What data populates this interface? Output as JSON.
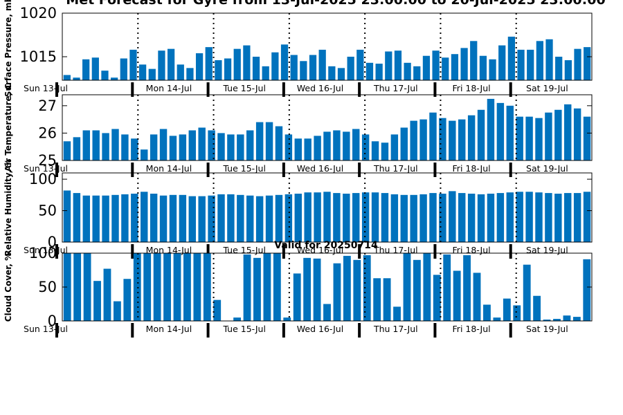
{
  "page": {
    "title": "Met Forecast for Gyre from 13-Jul-2025 23:00:00 to 20-Jul-2025 23:00:00",
    "subtitle": "Valid for 20250714"
  },
  "colors": {
    "bar": "#0072bd",
    "axis": "#000000"
  },
  "day_labels": [
    "Sun 13-Jul",
    "Mon 14-Jul",
    "Tue 15-Jul",
    "Wed 16-Jul",
    "Thu 17-Jul",
    "Fri 18-Jul",
    "Sat 19-Jul"
  ],
  "chart_data": [
    {
      "type": "bar",
      "ylabel": "Surface Pressure, mb",
      "yticks": [
        1015,
        1020
      ],
      "ylim": [
        1012.3,
        1020
      ],
      "values": [
        1012.9,
        1012.6,
        1014.7,
        1014.9,
        1013.4,
        1012.6,
        1014.8,
        1015.8,
        1014.1,
        1013.6,
        1015.7,
        1015.9,
        1014.1,
        1013.7,
        1015.4,
        1016.1,
        1014.6,
        1014.8,
        1015.9,
        1016.3,
        1015,
        1013.9,
        1015.5,
        1016.4,
        1015.2,
        1014.5,
        1015.2,
        1015.8,
        1013.9,
        1013.7,
        1015,
        1015.8,
        1014.3,
        1014.2,
        1015.6,
        1015.7,
        1014.3,
        1013.9,
        1015.1,
        1015.7,
        1014.9,
        1015.3,
        1016,
        1016.8,
        1015.1,
        1014.7,
        1016.3,
        1017.3,
        1015.8,
        1015.8,
        1016.8,
        1017,
        1015,
        1014.6,
        1015.9,
        1016.1
      ]
    },
    {
      "type": "bar",
      "ylabel": "Air Temperature, C",
      "yticks": [
        25,
        26,
        27
      ],
      "ylim": [
        25,
        27.4
      ],
      "values": [
        25.7,
        25.85,
        26.1,
        26.1,
        26,
        26.15,
        25.95,
        25.8,
        25.4,
        25.95,
        26.15,
        25.9,
        25.95,
        26.1,
        26.2,
        26.1,
        26,
        25.95,
        25.95,
        26.1,
        26.4,
        26.4,
        26.25,
        25.95,
        25.8,
        25.8,
        25.9,
        26.05,
        26.1,
        26.05,
        26.15,
        25.95,
        25.7,
        25.65,
        25.95,
        26.2,
        26.45,
        26.5,
        26.75,
        26.55,
        26.45,
        26.5,
        26.65,
        26.85,
        27.25,
        27.1,
        27,
        26.6,
        26.6,
        26.55,
        26.75,
        26.85,
        27.05,
        26.9,
        26.6
      ]
    },
    {
      "type": "bar",
      "ylabel": "Relative Humidity, %",
      "yticks": [
        0,
        50,
        100
      ],
      "ylim": [
        0,
        110
      ],
      "values": [
        82,
        78,
        74,
        74,
        74,
        75,
        76,
        77,
        80,
        77,
        74,
        75,
        75,
        73,
        73,
        74,
        76,
        76,
        75,
        74,
        73,
        74,
        75,
        76,
        77,
        79,
        79,
        80,
        78,
        77,
        78,
        79,
        79,
        78,
        76,
        75,
        75,
        76,
        78,
        77,
        81,
        78,
        77,
        76,
        77,
        78,
        79,
        80,
        80,
        79,
        78,
        77,
        78,
        78,
        80
      ]
    },
    {
      "type": "bar",
      "ylabel": "Cloud Cover, %",
      "yticks": [
        0,
        50,
        100
      ],
      "ylim": [
        0,
        100
      ],
      "values": [
        100,
        100,
        100,
        59,
        77,
        29,
        62,
        100,
        100,
        100,
        100,
        100,
        100,
        100,
        100,
        31,
        0,
        5,
        98,
        93,
        100,
        100,
        5,
        70,
        93,
        92,
        25,
        85,
        96,
        90,
        97,
        63,
        63,
        21,
        100,
        90,
        100,
        68,
        98,
        74,
        97,
        71,
        24,
        5,
        33,
        23,
        83,
        37,
        2,
        3,
        8,
        6,
        91
      ]
    }
  ]
}
